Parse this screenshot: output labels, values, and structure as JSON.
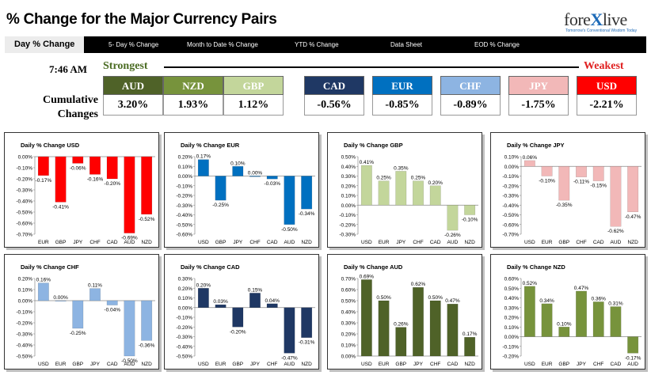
{
  "header": {
    "title": "% Change for the Major Currency Pairs"
  },
  "logo": {
    "brand_pre": "fore",
    "brand_x": "X",
    "brand_post": "live",
    "tagline": "Tomorrow's Conventional Wisdom Today"
  },
  "nav": {
    "items": [
      "Day % Change",
      "5- Day % Change",
      "Month to Date % Change",
      "YTD % Change",
      "Data Sheet",
      "EOD % Change"
    ]
  },
  "summary": {
    "time": "7:46 AM",
    "strongest_label": "Strongest",
    "weakest_label": "Weakest",
    "cumulative_label": "Cumulative Changes",
    "currencies": [
      {
        "code": "AUD",
        "value": "3.20%",
        "color": "#4f6228"
      },
      {
        "code": "NZD",
        "value": "1.93%",
        "color": "#77933c"
      },
      {
        "code": "GBP",
        "value": "1.12%",
        "color": "#c3d69b"
      },
      {
        "code": "CAD",
        "value": "-0.56%",
        "color": "#1f3864"
      },
      {
        "code": "EUR",
        "value": "-0.85%",
        "color": "#0070c0"
      },
      {
        "code": "CHF",
        "value": "-0.89%",
        "color": "#8db4e2"
      },
      {
        "code": "JPY",
        "value": "-1.75%",
        "color": "#f2b8b8"
      },
      {
        "code": "USD",
        "value": "-2.21%",
        "color": "#ff0000"
      }
    ]
  },
  "chart_data": [
    {
      "type": "bar",
      "title": "Daily % Change USD",
      "categories": [
        "EUR",
        "GBP",
        "JPY",
        "CHF",
        "CAD",
        "AUD",
        "NZD"
      ],
      "values": [
        -0.17,
        -0.41,
        -0.06,
        -0.16,
        -0.2,
        -0.69,
        -0.52
      ],
      "ylim": [
        -0.7,
        0.0
      ],
      "yticks": [
        "0.00%",
        "-0.10%",
        "-0.20%",
        "-0.30%",
        "-0.40%",
        "-0.50%",
        "-0.60%",
        "-0.70%"
      ],
      "labels": [
        "-0.17%",
        "-0.41%",
        "-0.06%",
        "-0.16%",
        "-0.20%",
        "-0.69%",
        "-0.52%"
      ],
      "color": "#ff0000"
    },
    {
      "type": "bar",
      "title": "Daily % Change EUR",
      "categories": [
        "USD",
        "GBP",
        "JPY",
        "CHF",
        "CAD",
        "AUD",
        "NZD"
      ],
      "values": [
        0.17,
        -0.25,
        0.1,
        0.0,
        -0.03,
        -0.5,
        -0.34
      ],
      "ylim": [
        -0.6,
        0.2
      ],
      "yticks": [
        "0.20%",
        "0.10%",
        "0.00%",
        "-0.10%",
        "-0.20%",
        "-0.30%",
        "-0.40%",
        "-0.50%",
        "-0.60%"
      ],
      "labels": [
        "0.17%",
        "-0.25%",
        "0.10%",
        "0.00%",
        "-0.03%",
        "-0.50%",
        "-0.34%"
      ],
      "color": "#0070c0"
    },
    {
      "type": "bar",
      "title": "Daily % Change GBP",
      "categories": [
        "USD",
        "EUR",
        "JPY",
        "CHF",
        "CAD",
        "AUD",
        "NZD"
      ],
      "values": [
        0.41,
        0.25,
        0.35,
        0.25,
        0.2,
        -0.26,
        -0.1
      ],
      "ylim": [
        -0.3,
        0.5
      ],
      "yticks": [
        "0.50%",
        "0.40%",
        "0.30%",
        "0.20%",
        "0.10%",
        "0.00%",
        "-0.10%",
        "-0.20%",
        "-0.30%"
      ],
      "labels": [
        "0.41%",
        "0.25%",
        "0.35%",
        "0.25%",
        "0.20%",
        "-0.26%",
        "-0.10%"
      ],
      "color": "#c3d69b"
    },
    {
      "type": "bar",
      "title": "Daily % Change JPY",
      "categories": [
        "USD",
        "EUR",
        "GBP",
        "CHF",
        "CAD",
        "AUD",
        "NZD"
      ],
      "values": [
        0.06,
        -0.1,
        -0.35,
        -0.11,
        -0.15,
        -0.62,
        -0.47
      ],
      "ylim": [
        -0.7,
        0.1
      ],
      "yticks": [
        "0.10%",
        "0.00%",
        "-0.10%",
        "-0.20%",
        "-0.30%",
        "-0.40%",
        "-0.50%",
        "-0.60%",
        "-0.70%"
      ],
      "labels": [
        "0.06%",
        "-0.10%",
        "-0.35%",
        "-0.11%",
        "-0.15%",
        "-0.62%",
        "-0.47%"
      ],
      "color": "#f2b8b8"
    },
    {
      "type": "bar",
      "title": "Daily % Change CHF",
      "categories": [
        "USD",
        "EUR",
        "GBP",
        "JPY",
        "CAD",
        "AUD",
        "NZD"
      ],
      "values": [
        0.16,
        0.0,
        -0.25,
        0.11,
        -0.04,
        -0.5,
        -0.36
      ],
      "ylim": [
        -0.5,
        0.2
      ],
      "yticks": [
        "0.20%",
        "0.10%",
        "0.00%",
        "-0.10%",
        "-0.20%",
        "-0.30%",
        "-0.40%",
        "-0.50%"
      ],
      "labels": [
        "0.16%",
        "0.00%",
        "-0.25%",
        "0.11%",
        "-0.04%",
        "-0.50%",
        "-0.36%"
      ],
      "color": "#8db4e2"
    },
    {
      "type": "bar",
      "title": "Daily % Change CAD",
      "categories": [
        "USD",
        "EUR",
        "GBP",
        "JPY",
        "CHF",
        "AUD",
        "NZD"
      ],
      "values": [
        0.2,
        0.03,
        -0.2,
        0.15,
        0.04,
        -0.47,
        -0.31
      ],
      "ylim": [
        -0.5,
        0.3
      ],
      "yticks": [
        "0.30%",
        "0.20%",
        "0.10%",
        "0.00%",
        "-0.10%",
        "-0.20%",
        "-0.30%",
        "-0.40%",
        "-0.50%"
      ],
      "labels": [
        "0.20%",
        "0.03%",
        "-0.20%",
        "0.15%",
        "0.04%",
        "-0.47%",
        "-0.31%"
      ],
      "color": "#1f3864"
    },
    {
      "type": "bar",
      "title": "Daily % Change AUD",
      "categories": [
        "USD",
        "EUR",
        "GBP",
        "JPY",
        "CHF",
        "CAD",
        "NZD"
      ],
      "values": [
        0.69,
        0.5,
        0.26,
        0.62,
        0.5,
        0.47,
        0.17
      ],
      "ylim": [
        0.0,
        0.7
      ],
      "yticks": [
        "0.70%",
        "0.60%",
        "0.50%",
        "0.40%",
        "0.30%",
        "0.20%",
        "0.10%",
        "0.00%"
      ],
      "labels": [
        "0.69%",
        "0.50%",
        "0.26%",
        "0.62%",
        "0.50%",
        "0.47%",
        "0.17%"
      ],
      "color": "#4f6228"
    },
    {
      "type": "bar",
      "title": "Daily % Change NZD",
      "categories": [
        "USD",
        "EUR",
        "GBP",
        "JPY",
        "CHF",
        "CAD",
        "AUD"
      ],
      "values": [
        0.52,
        0.34,
        0.1,
        0.47,
        0.36,
        0.31,
        -0.17
      ],
      "ylim": [
        -0.2,
        0.6
      ],
      "yticks": [
        "0.60%",
        "0.50%",
        "0.40%",
        "0.30%",
        "0.20%",
        "0.10%",
        "0.00%",
        "-0.10%",
        "-0.20%"
      ],
      "labels": [
        "0.52%",
        "0.34%",
        "0.10%",
        "0.47%",
        "0.36%",
        "0.31%",
        "-0.17%"
      ],
      "color": "#77933c"
    }
  ]
}
